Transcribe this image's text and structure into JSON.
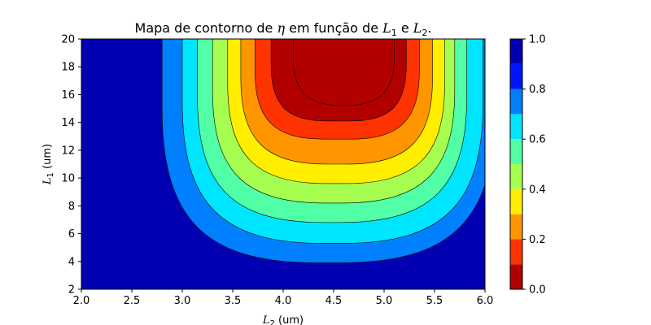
{
  "chart_data": {
    "type": "heatmap",
    "subtype": "filled-contour",
    "title": {
      "prefix": "Mapa de contorno de ",
      "symbol": "η",
      "middle": " em função de ",
      "var1": "L",
      "sub1": "1",
      "conj": " e ",
      "var2": "L",
      "sub2": "2",
      "suffix": "."
    },
    "xlabel": {
      "var": "L",
      "sub": "2",
      "unit": " (um)"
    },
    "ylabel": {
      "var": "L",
      "sub": "1",
      "unit": " (um)"
    },
    "xlim": [
      2.0,
      6.0
    ],
    "ylim": [
      2,
      20
    ],
    "x_ticks": [
      "2.0",
      "2.5",
      "3.0",
      "3.5",
      "4.0",
      "4.5",
      "5.0",
      "5.5",
      "6.0"
    ],
    "y_ticks": [
      "2",
      "4",
      "6",
      "8",
      "10",
      "12",
      "14",
      "16",
      "18",
      "20"
    ],
    "colorbar": {
      "range": [
        0.0,
        1.0
      ],
      "ticks": [
        "0.0",
        "0.2",
        "0.4",
        "0.6",
        "0.8",
        "1.0"
      ],
      "levels": [
        0.0,
        0.1,
        0.2,
        0.3,
        0.4,
        0.5,
        0.6,
        0.7,
        0.8,
        0.9,
        1.0
      ],
      "colors": [
        "#b20000",
        "#ff3300",
        "#ff9600",
        "#ffee00",
        "#a6ff50",
        "#50ffa6",
        "#00e5ff",
        "#0080ff",
        "#0015ff",
        "#0000b2"
      ]
    },
    "field_minimum": {
      "x": 4.6,
      "y": 19.0,
      "value": 0.0
    },
    "contour_boundaries": {
      "0.8": {
        "x_left": 2.8,
        "x_right": 6.1,
        "y_bottom": 3.9
      },
      "0.7": {
        "x_left": 3.0,
        "x_right": 5.98,
        "y_bottom": 5.3
      },
      "0.6": {
        "x_left": 3.15,
        "x_right": 5.82,
        "y_bottom": 6.8
      },
      "0.5": {
        "x_left": 3.3,
        "x_right": 5.7,
        "y_bottom": 8.2
      },
      "0.4": {
        "x_left": 3.45,
        "x_right": 5.6,
        "y_bottom": 9.6
      },
      "0.3": {
        "x_left": 3.58,
        "x_right": 5.48,
        "y_bottom": 11.0
      },
      "0.2": {
        "x_left": 3.72,
        "x_right": 5.35,
        "y_bottom": 12.8
      },
      "0.1": {
        "x_left": 3.88,
        "x_right": 5.22,
        "y_bottom": 14.1
      },
      "0.0": {
        "x_left": 4.1,
        "x_right": 5.1,
        "y_bottom": 15.2
      }
    },
    "colormap": "jet",
    "grid": false
  }
}
